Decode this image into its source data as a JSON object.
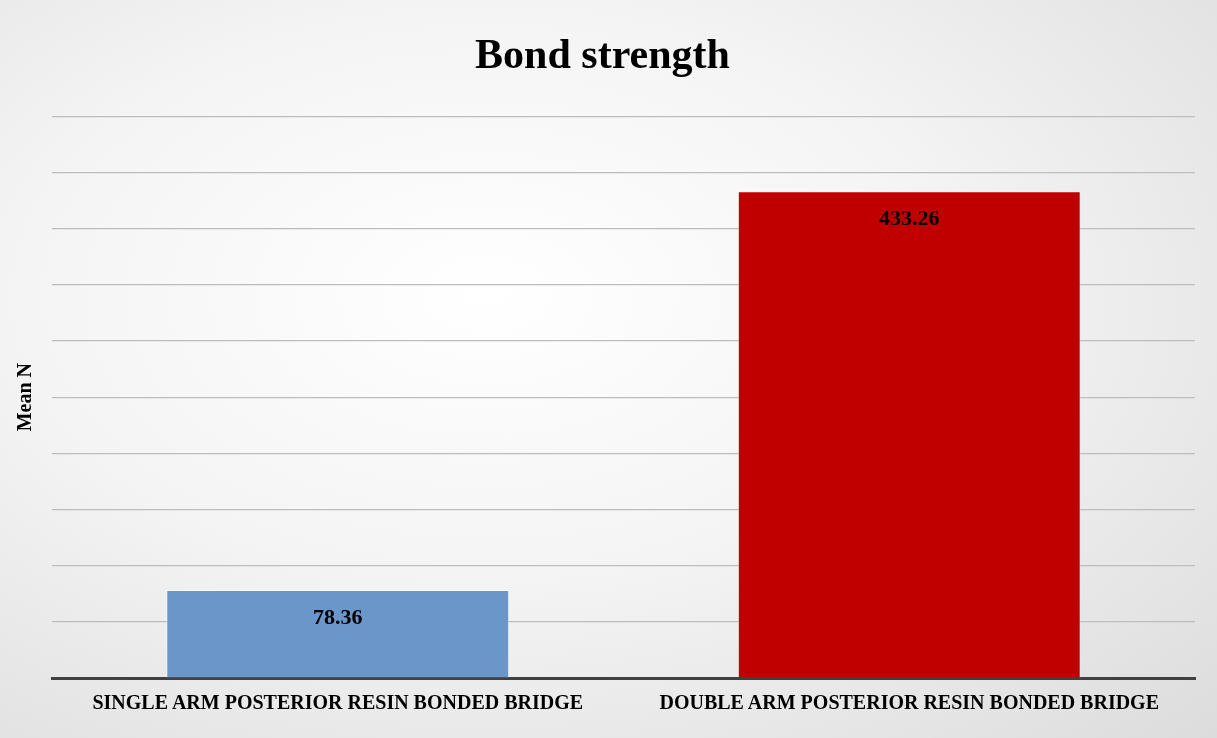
{
  "chart_data": {
    "type": "bar",
    "title": "Bond strength",
    "ylabel": "Mean N",
    "categories": [
      "SINGLE ARM POSTERIOR RESIN BONDED BRIDGE",
      "DOUBLE ARM POSTERIOR RESIN BONDED BRIDGE"
    ],
    "values": [
      78.36,
      433.26
    ],
    "colors": [
      "#6a96c9",
      "#c00000"
    ],
    "ylim": [
      0,
      500
    ],
    "yticks": [
      {
        "value": 0,
        "label": null
      },
      {
        "value": 50,
        "label": null
      },
      {
        "value": 100,
        "label": null
      },
      {
        "value": 150,
        "label": null
      },
      {
        "value": 200,
        "label": null
      },
      {
        "value": 250,
        "label": null
      },
      {
        "value": 300,
        "label": null
      },
      {
        "value": 350,
        "label": null
      },
      {
        "value": 400,
        "label": null
      },
      {
        "value": 450,
        "label": null
      },
      {
        "value": 500,
        "label": null
      }
    ],
    "tick_labels": "x",
    "grid": "y",
    "data_labels": true
  }
}
